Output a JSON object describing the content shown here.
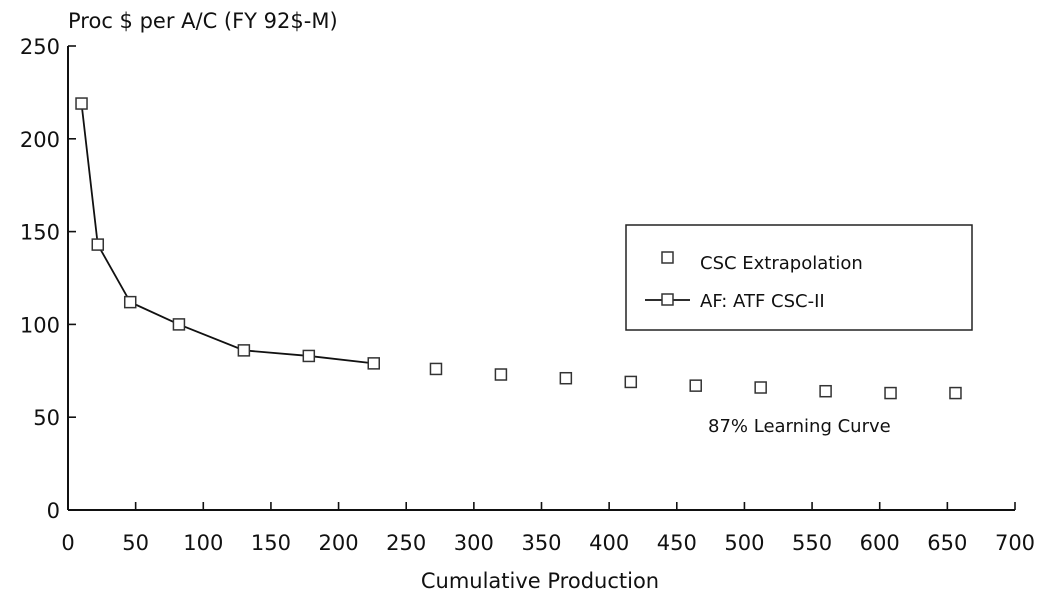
{
  "chart_data": {
    "type": "scatter",
    "ylabel": "Proc $ per A/C (FY 92$-M)",
    "xlabel": "Cumulative Production",
    "xlim": [
      0,
      700
    ],
    "ylim": [
      0,
      250
    ],
    "xticks": [
      0,
      50,
      100,
      150,
      200,
      250,
      300,
      350,
      400,
      450,
      500,
      550,
      600,
      650,
      700
    ],
    "yticks": [
      0,
      50,
      100,
      150,
      200,
      250
    ],
    "grid": false,
    "legend_position": "right",
    "series": [
      {
        "name": "CSC Extrapolation",
        "style": "markers",
        "x": [
          272,
          320,
          368,
          416,
          464,
          512,
          560,
          608,
          656
        ],
        "y": [
          76,
          73,
          71,
          69,
          67,
          66,
          64,
          63,
          63
        ]
      },
      {
        "name": "AF: ATF CSC-II",
        "style": "line-markers",
        "x": [
          10,
          22,
          46,
          82,
          130,
          178,
          226
        ],
        "y": [
          219,
          143,
          112,
          100,
          86,
          83,
          79
        ]
      }
    ],
    "annotations": [
      "87% Learning Curve"
    ]
  }
}
